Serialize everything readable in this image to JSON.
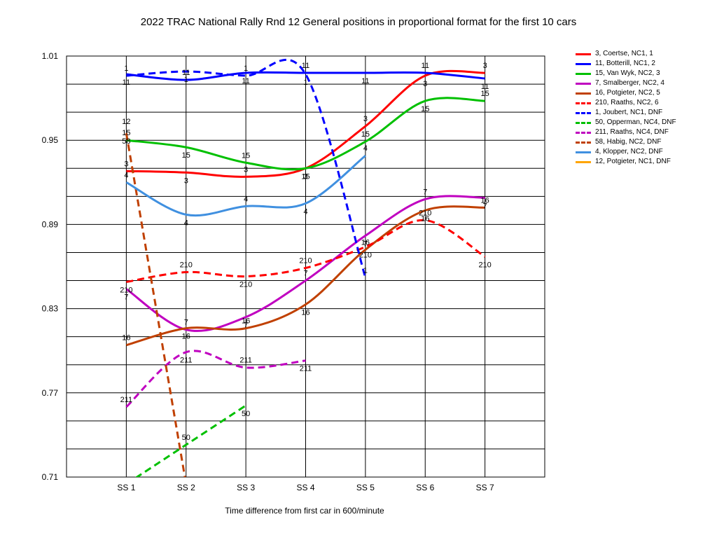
{
  "chart_data": {
    "type": "line",
    "title": "2022 TRAC National Rally Rnd 12  General positions in proportional format for the first 10 cars",
    "xlabel": "Time difference from first car in 600/minute",
    "ylabel": "",
    "categories": [
      "SS 1",
      "SS 2",
      "SS 3",
      "SS 4",
      "SS 5",
      "SS 6",
      "SS 7"
    ],
    "ylim": [
      0.71,
      1.01
    ],
    "yticks": [
      "1.01",
      "0.95",
      "0.89",
      "0.83",
      "0.77",
      "0.71"
    ],
    "grid": true,
    "legend_position": "right",
    "series": [
      {
        "name": "3, Coertse, NC1, 1",
        "label": "3",
        "color": "#ff0000",
        "dashed": false,
        "values": [
          0.928,
          0.927,
          0.924,
          0.93,
          0.96,
          0.996,
          0.998
        ]
      },
      {
        "name": "11, Botterill, NC1, 2",
        "label": "11",
        "color": "#0000ff",
        "dashed": false,
        "values": [
          0.997,
          0.993,
          0.998,
          0.998,
          0.998,
          0.998,
          0.994
        ]
      },
      {
        "name": "15, Van Wyk, NC2, 3",
        "label": "15",
        "color": "#00c000",
        "dashed": false,
        "values": [
          0.95,
          0.945,
          0.934,
          0.93,
          0.949,
          0.978,
          0.978
        ]
      },
      {
        "name": "7, Smalberger, NC2, 4",
        "label": "7",
        "color": "#c000c0",
        "dashed": false,
        "values": [
          0.844,
          0.815,
          0.824,
          0.85,
          0.882,
          0.908,
          0.909
        ]
      },
      {
        "name": "16, Potgieter, NC2, 5",
        "label": "16",
        "color": "#c04000",
        "dashed": false,
        "values": [
          0.804,
          0.816,
          0.816,
          0.833,
          0.872,
          0.9,
          0.902
        ]
      },
      {
        "name": "210, Raaths, NC2, 6",
        "label": "210",
        "color": "#ff0000",
        "dashed": true,
        "values": [
          0.849,
          0.856,
          0.853,
          0.859,
          0.874,
          0.893,
          0.867
        ]
      },
      {
        "name": "1, Joubert, NC1, DNF",
        "label": "1",
        "color": "#0000ff",
        "dashed": true,
        "values": [
          0.996,
          0.999,
          0.996,
          0.997,
          0.852,
          null,
          null
        ]
      },
      {
        "name": "50, Opperman, NC4, DNF",
        "label": "50",
        "color": "#00c000",
        "dashed": true,
        "values": [
          0.705,
          0.733,
          0.761,
          null,
          null,
          null,
          null
        ]
      },
      {
        "name": "211, Raaths, NC4, DNF",
        "label": "211",
        "color": "#c000c0",
        "dashed": true,
        "values": [
          0.76,
          0.799,
          0.788,
          0.793,
          null,
          null,
          null
        ]
      },
      {
        "name": "58, Habig, NC2, DNF",
        "label": "58",
        "color": "#c04000",
        "dashed": true,
        "values": [
          0.955,
          0.705,
          null,
          null,
          null,
          null,
          null
        ]
      },
      {
        "name": "4, Klopper, NC2, DNF",
        "label": "4",
        "color": "#4090e0",
        "dashed": false,
        "values": [
          0.92,
          0.897,
          0.903,
          0.905,
          0.939,
          null,
          null
        ]
      },
      {
        "name": "12, Potgieter, NC1, DNF",
        "label": "12",
        "color": "#ffa500",
        "dashed": false,
        "values": [
          0.969,
          null,
          null,
          null,
          null,
          null,
          null
        ]
      }
    ]
  }
}
